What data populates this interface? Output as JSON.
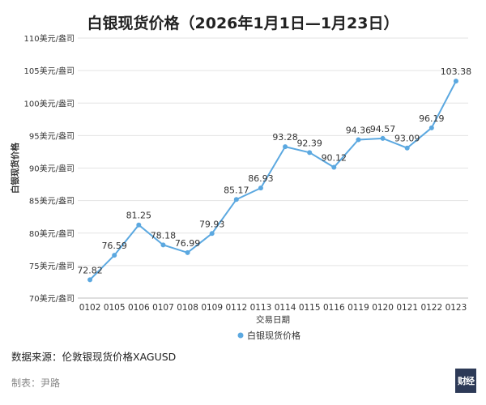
{
  "page": {
    "title": "白银现货价格（2026年1月1日—1月23日）",
    "source": "数据来源：伦敦银现货价格XAGUSD",
    "author": "制表：尹路",
    "logo_text": "财经"
  },
  "chart_data": {
    "type": "line",
    "title": "白银现货价格（2026年1月1日—1月23日）",
    "xlabel": "交易日期",
    "ylabel": "白银现货价格",
    "ylim": [
      70,
      110
    ],
    "y_ticks": [
      70,
      75,
      80,
      85,
      90,
      95,
      100,
      105,
      110
    ],
    "y_tick_suffix": "美元/盎司",
    "grid": true,
    "legend": "bottom",
    "color": "#5ba8e0",
    "categories": [
      "0102",
      "0105",
      "0106",
      "0107",
      "0108",
      "0109",
      "0112",
      "0113",
      "0114",
      "0115",
      "0116",
      "0119",
      "0120",
      "0121",
      "0122",
      "0123"
    ],
    "series": [
      {
        "name": "白银现货价格",
        "values": [
          72.82,
          76.59,
          81.25,
          78.18,
          76.99,
          79.93,
          85.17,
          86.93,
          93.28,
          92.39,
          90.12,
          94.36,
          94.57,
          93.09,
          96.19,
          103.38
        ]
      }
    ]
  }
}
